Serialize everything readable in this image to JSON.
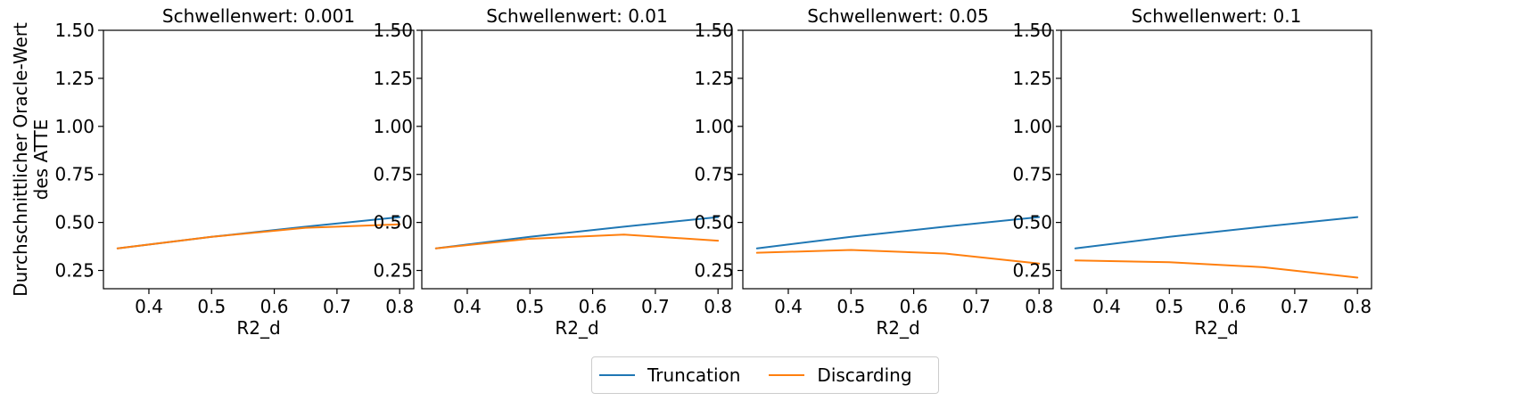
{
  "chart_data": {
    "type": "line",
    "ylabel": "Durchschnittlicher Oracle-Wert\ndes ATTE",
    "xlabel": "R2_d",
    "x": [
      0.35,
      0.5,
      0.65,
      0.8
    ],
    "xticks": [
      0.4,
      0.5,
      0.6,
      0.7,
      0.8
    ],
    "xticklabels": [
      "0.4",
      "0.5",
      "0.6",
      "0.7",
      "0.8"
    ],
    "xlim": [
      0.3275,
      0.8225
    ],
    "ylim": [
      0.155,
      1.5
    ],
    "yticks": [
      0.25,
      0.5,
      0.75,
      1.0,
      1.25,
      1.5
    ],
    "yticklabels": [
      "0.25",
      "0.50",
      "0.75",
      "1.00",
      "1.25",
      "1.50"
    ],
    "grid": false,
    "legend": {
      "placement": "bottom-center",
      "entries": [
        {
          "label": "Truncation",
          "color": "#1f77b4"
        },
        {
          "label": "Discarding",
          "color": "#ff7f0e"
        }
      ]
    },
    "panels": [
      {
        "title": "Schwellenwert: 0.001",
        "series": [
          {
            "name": "Truncation",
            "color": "#1f77b4",
            "values": [
              0.365,
              0.425,
              0.478,
              0.528
            ]
          },
          {
            "name": "Discarding",
            "color": "#ff7f0e",
            "values": [
              0.365,
              0.425,
              0.472,
              0.49
            ]
          }
        ]
      },
      {
        "title": "Schwellenwert: 0.01",
        "series": [
          {
            "name": "Truncation",
            "color": "#1f77b4",
            "values": [
              0.365,
              0.425,
              0.478,
              0.528
            ]
          },
          {
            "name": "Discarding",
            "color": "#ff7f0e",
            "values": [
              0.365,
              0.415,
              0.437,
              0.405
            ]
          }
        ]
      },
      {
        "title": "Schwellenwert: 0.05",
        "series": [
          {
            "name": "Truncation",
            "color": "#1f77b4",
            "values": [
              0.365,
              0.425,
              0.478,
              0.528
            ]
          },
          {
            "name": "Discarding",
            "color": "#ff7f0e",
            "values": [
              0.342,
              0.357,
              0.338,
              0.286
            ]
          }
        ]
      },
      {
        "title": "Schwellenwert: 0.1",
        "series": [
          {
            "name": "Truncation",
            "color": "#1f77b4",
            "values": [
              0.365,
              0.425,
              0.478,
              0.528
            ]
          },
          {
            "name": "Discarding",
            "color": "#ff7f0e",
            "values": [
              0.302,
              0.293,
              0.267,
              0.213
            ]
          }
        ]
      }
    ]
  }
}
